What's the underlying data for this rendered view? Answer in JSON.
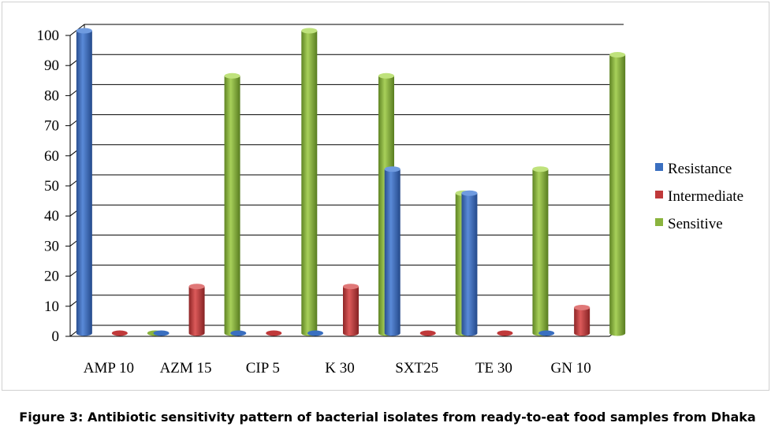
{
  "chart_data": {
    "type": "bar",
    "categories": [
      "AMP 10",
      "AZM 15",
      "CIP 5",
      "K 30",
      "SXT25",
      "TE 30",
      "GN 10"
    ],
    "series": [
      {
        "name": "Resistance",
        "color": "#3a6fc0",
        "values": [
          100,
          0,
          0,
          0,
          54,
          46,
          0
        ]
      },
      {
        "name": "Intermediate",
        "color": "#c0393a",
        "values": [
          0,
          15,
          0,
          15,
          0,
          0,
          8
        ]
      },
      {
        "name": "Sensitive",
        "color": "#8ab43e",
        "values": [
          0,
          85,
          100,
          85,
          46,
          54,
          92
        ]
      }
    ],
    "yticks": [
      "0",
      "10",
      "20",
      "30",
      "40",
      "50",
      "60",
      "70",
      "80",
      "90",
      "100"
    ],
    "ylim": [
      0,
      100
    ],
    "grid": true,
    "legend_position": "right",
    "style": "3d-cylinder"
  },
  "caption": "Figure 3: Antibiotic sensitivity pattern of bacterial isolates from ready-to-eat food samples from Dhaka"
}
